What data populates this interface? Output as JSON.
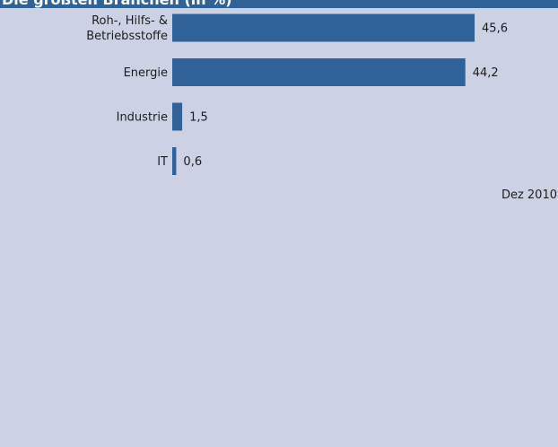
{
  "header": {
    "title": "Die größten Branchen (in %)"
  },
  "date_note": "Dez 2010",
  "colors": {
    "bar": "#2f6299",
    "background": "#ccd1e3",
    "text": "#1d1d1d"
  },
  "chart_data": {
    "type": "bar",
    "orientation": "horizontal",
    "title": "Die größten Branchen (in %)",
    "categories": [
      [
        "Roh-, Hilfs- &",
        "Betriebsstoffe"
      ],
      [
        "Energie"
      ],
      [
        "Industrie"
      ],
      [
        "IT"
      ]
    ],
    "values": [
      45.6,
      44.2,
      1.5,
      0.6
    ],
    "value_labels": [
      "45,6",
      "44,2",
      "1,5",
      "0,6"
    ],
    "xlim": [
      0,
      46
    ],
    "grid": false,
    "legend": "none"
  }
}
